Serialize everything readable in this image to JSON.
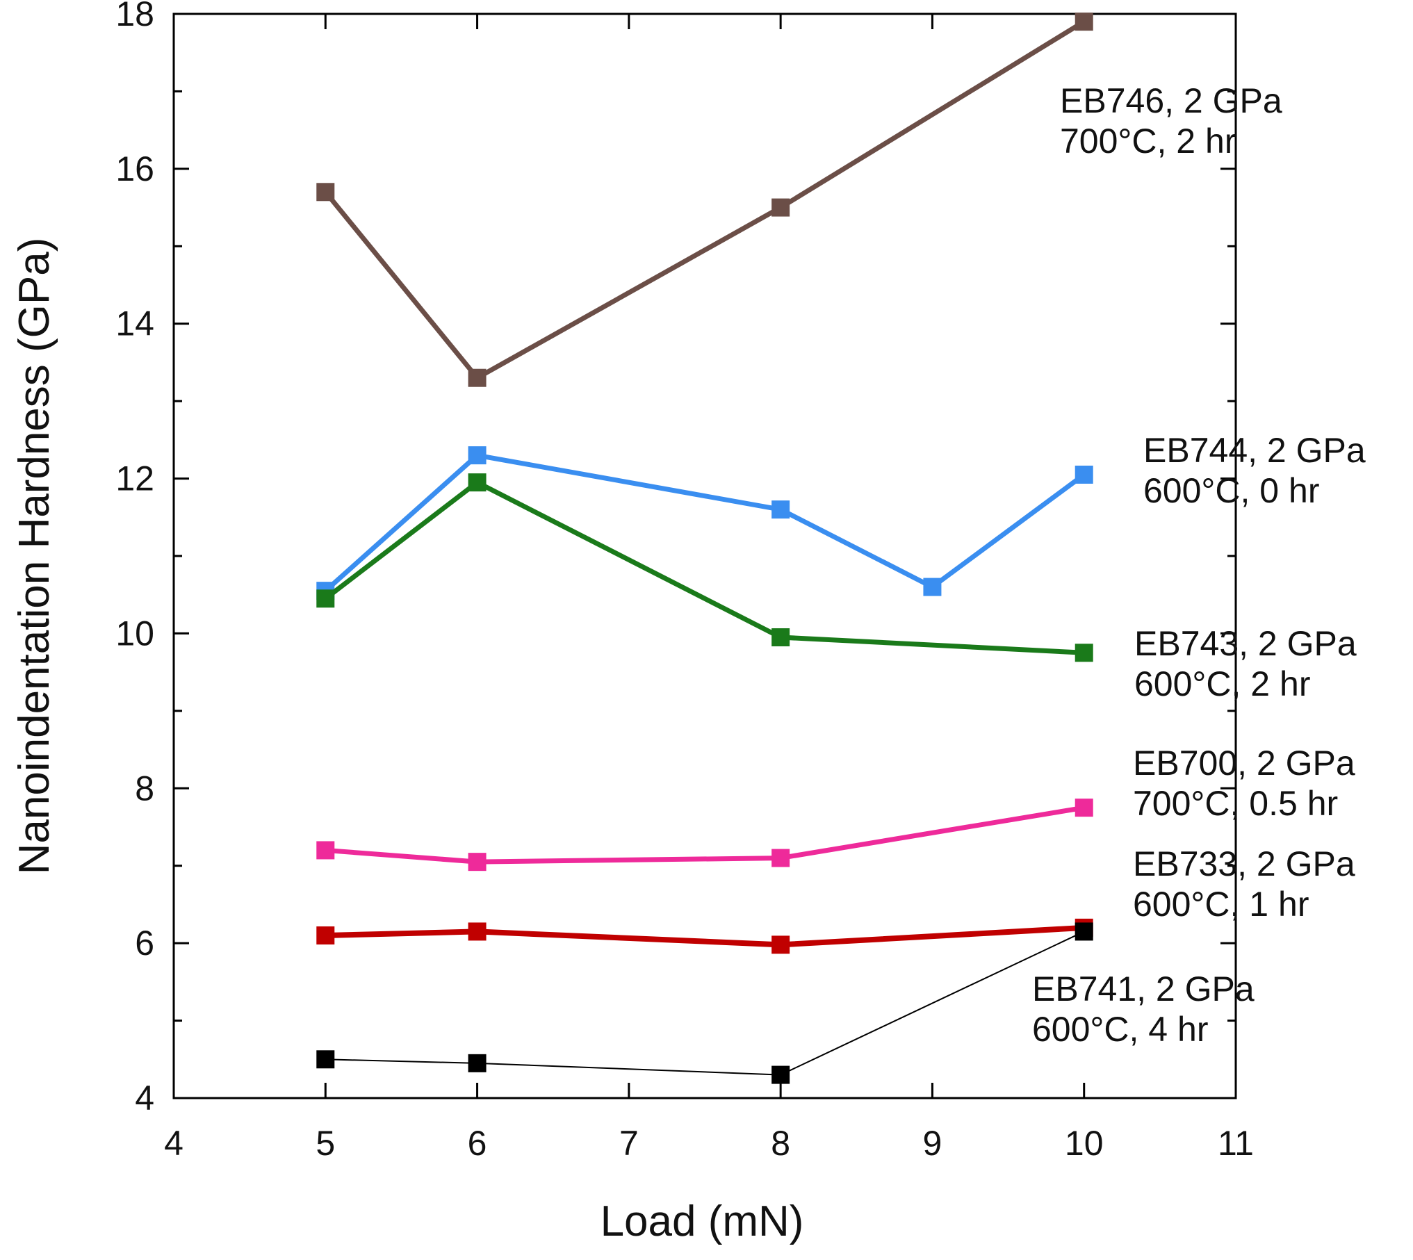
{
  "chart_data": {
    "type": "line",
    "title": "",
    "xlabel": "Load (mN)",
    "ylabel": "Nanoindentation Hardness (GPa)",
    "xlim": [
      4,
      11
    ],
    "ylim": [
      4,
      18
    ],
    "xticks": [
      4,
      5,
      6,
      7,
      8,
      9,
      10,
      11
    ],
    "yticks": [
      4,
      6,
      8,
      10,
      12,
      14,
      16,
      18
    ],
    "grid": false,
    "series": [
      {
        "name": "EB746",
        "color": "#6b4e47",
        "width": 7,
        "x": [
          5,
          6,
          8,
          10
        ],
        "y": [
          15.7,
          13.3,
          15.5,
          17.9
        ],
        "label": [
          "EB746, 2 GPa",
          "700°C, 2 hr"
        ]
      },
      {
        "name": "EB744",
        "color": "#3a8ef0",
        "width": 7,
        "x": [
          5,
          6,
          8,
          9,
          10
        ],
        "y": [
          10.55,
          12.3,
          11.6,
          10.6,
          12.05
        ],
        "label": [
          "EB744, 2 GPa",
          "600°C, 0 hr"
        ]
      },
      {
        "name": "EB743",
        "color": "#1a7a1a",
        "width": 7,
        "x": [
          5,
          6,
          8,
          10
        ],
        "y": [
          10.45,
          11.95,
          9.95,
          9.75
        ],
        "label": [
          "EB743, 2 GPa",
          "600°C, 2 hr"
        ]
      },
      {
        "name": "EB700",
        "color": "#ee2a9a",
        "width": 7,
        "x": [
          5,
          6,
          8,
          10
        ],
        "y": [
          7.2,
          7.05,
          7.1,
          7.75
        ],
        "label": [
          "EB700, 2 GPa",
          "700°C, 0.5 hr"
        ]
      },
      {
        "name": "EB733",
        "color": "#c00000",
        "width": 8,
        "x": [
          5,
          6,
          8,
          10
        ],
        "y": [
          6.1,
          6.15,
          5.98,
          6.2
        ],
        "label": [
          "EB733, 2 GPa",
          "600°C, 1 hr"
        ]
      },
      {
        "name": "EB741",
        "color": "#000000",
        "width": 2,
        "x": [
          5,
          6,
          8,
          10
        ],
        "y": [
          4.5,
          4.45,
          4.3,
          6.15
        ],
        "label": [
          "EB741, 2 GPa",
          "600°C, 4 hr"
        ]
      }
    ]
  }
}
